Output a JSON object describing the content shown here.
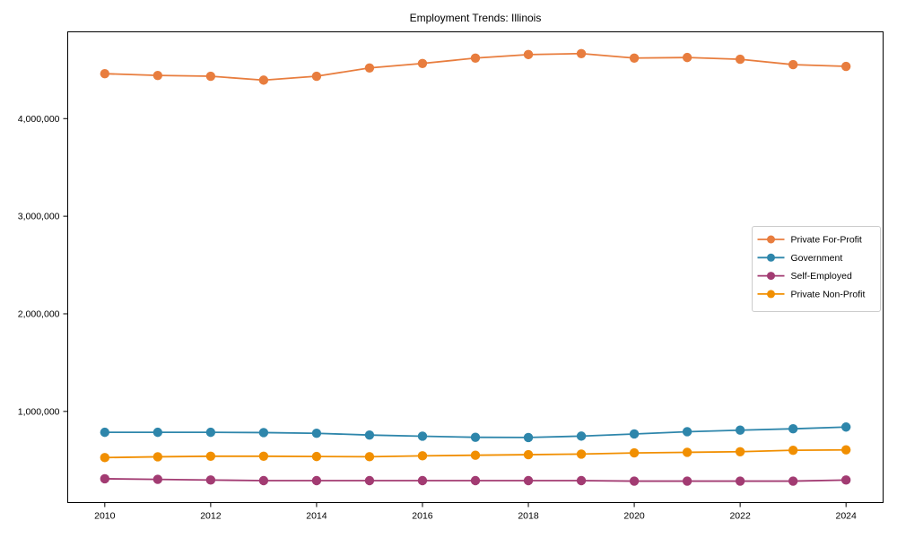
{
  "chart_data": {
    "type": "line",
    "title": "Employment Trends: Illinois",
    "xlabel": "",
    "ylabel": "",
    "x": [
      2010,
      2011,
      2012,
      2013,
      2014,
      2015,
      2016,
      2017,
      2018,
      2019,
      2020,
      2021,
      2022,
      2023,
      2024
    ],
    "series": [
      {
        "name": "Private For-Profit",
        "color": "#E87D3E",
        "values": [
          4460000,
          4442000,
          4434000,
          4394000,
          4434000,
          4519000,
          4565000,
          4620000,
          4656000,
          4666000,
          4620000,
          4626000,
          4608000,
          4553000,
          4535000
        ]
      },
      {
        "name": "Government",
        "color": "#2E86AB",
        "values": [
          786000,
          786000,
          786000,
          783000,
          776000,
          758000,
          746000,
          735000,
          733000,
          747000,
          769000,
          792000,
          808000,
          822000,
          840000
        ]
      },
      {
        "name": "Self-Employed",
        "color": "#A23B72",
        "values": [
          310000,
          304000,
          297000,
          291000,
          291000,
          291000,
          291000,
          291000,
          291000,
          291000,
          286000,
          286000,
          286000,
          286000,
          297000
        ]
      },
      {
        "name": "Private Non-Profit",
        "color": "#F18F01",
        "values": [
          527000,
          535000,
          541000,
          541000,
          538000,
          536000,
          545000,
          551000,
          557000,
          563000,
          575000,
          581000,
          587000,
          602000,
          606000
        ]
      }
    ],
    "xlim": [
      2009.3,
      2024.7
    ],
    "ylim": [
      66000,
      4889000
    ],
    "xticks": [
      2010,
      2012,
      2014,
      2016,
      2018,
      2020,
      2022,
      2024
    ],
    "yticks": [
      1000000,
      2000000,
      3000000,
      4000000
    ],
    "ytick_labels": [
      "1,000,000",
      "2,000,000",
      "3,000,000",
      "4,000,000"
    ],
    "grid": false,
    "legend_position": "center right",
    "axis_color": "#000000",
    "legend_border_color": "#cccccc",
    "background": "#ffffff"
  }
}
